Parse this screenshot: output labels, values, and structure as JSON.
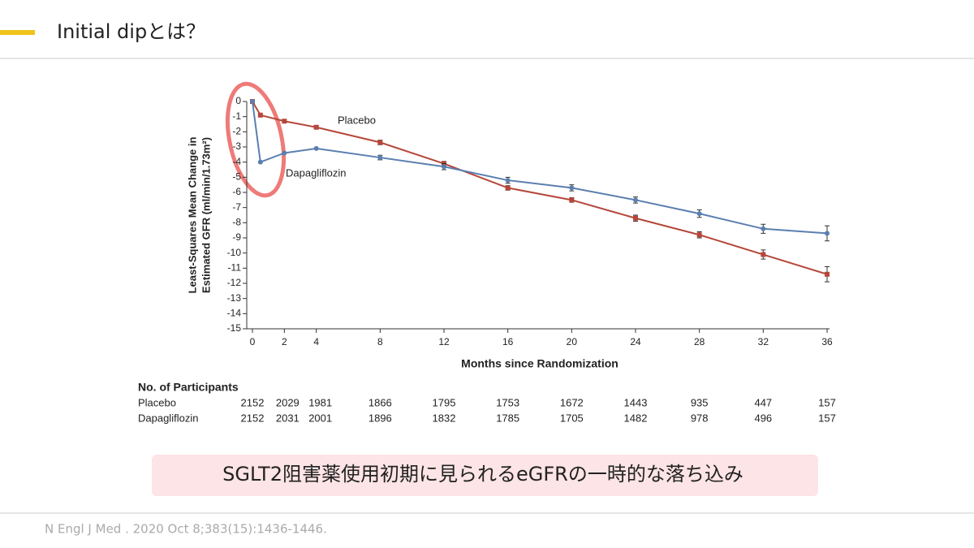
{
  "header": {
    "title": "Initial dipとは？"
  },
  "chart_data": {
    "type": "line",
    "ylabel": [
      "Least-Squares Mean Change in",
      "Estimated GFR (ml/min/1.73m²)"
    ],
    "xlabel": "Months since Randomization",
    "x": [
      0,
      0.5,
      2,
      4,
      8,
      12,
      16,
      20,
      24,
      28,
      32,
      36
    ],
    "series": [
      {
        "name": "Placebo",
        "color": "#b5473a",
        "marker": "square",
        "values": [
          0,
          -0.9,
          -1.3,
          -1.7,
          -2.7,
          -4.1,
          -5.7,
          -6.5,
          -7.7,
          -8.8,
          -10.1,
          -11.4
        ],
        "errors": [
          0,
          0,
          0,
          0.1,
          0.15,
          0.15,
          0.15,
          0.15,
          0.2,
          0.2,
          0.3,
          0.5
        ]
      },
      {
        "name": "Dapagliflozin",
        "color": "#5a7fb0",
        "marker": "circle",
        "values": [
          0,
          -4.0,
          -3.4,
          -3.1,
          -3.7,
          -4.3,
          -5.2,
          -5.7,
          -6.5,
          -7.4,
          -8.4,
          -8.7
        ],
        "errors": [
          0,
          0,
          0,
          0,
          0.15,
          0.2,
          0.2,
          0.2,
          0.2,
          0.25,
          0.3,
          0.5
        ]
      }
    ],
    "xlim": [
      0,
      36
    ],
    "xticks": [
      0,
      2,
      4,
      8,
      12,
      16,
      20,
      24,
      28,
      32,
      36
    ],
    "ylim": [
      -15,
      0
    ],
    "yticks": [
      0,
      -1,
      -2,
      -3,
      -4,
      -5,
      -6,
      -7,
      -8,
      -9,
      -10,
      -11,
      -12,
      -13,
      -14,
      -15
    ],
    "participants": {
      "title": "No. of Participants",
      "rows": [
        {
          "label": "Placebo",
          "values": [
            2152,
            2029,
            1981,
            1866,
            1795,
            1753,
            1672,
            1443,
            935,
            447,
            157
          ]
        },
        {
          "label": "Dapagliflozin",
          "values": [
            2152,
            2031,
            2001,
            1896,
            1832,
            1785,
            1705,
            1482,
            978,
            496,
            157
          ]
        }
      ]
    }
  },
  "caption": "SGLT2阻害薬使用初期に見られるeGFRの一時的な落ち込み",
  "citation": "N Engl J Med . 2020 Oct 8;383(15):1436-1446."
}
